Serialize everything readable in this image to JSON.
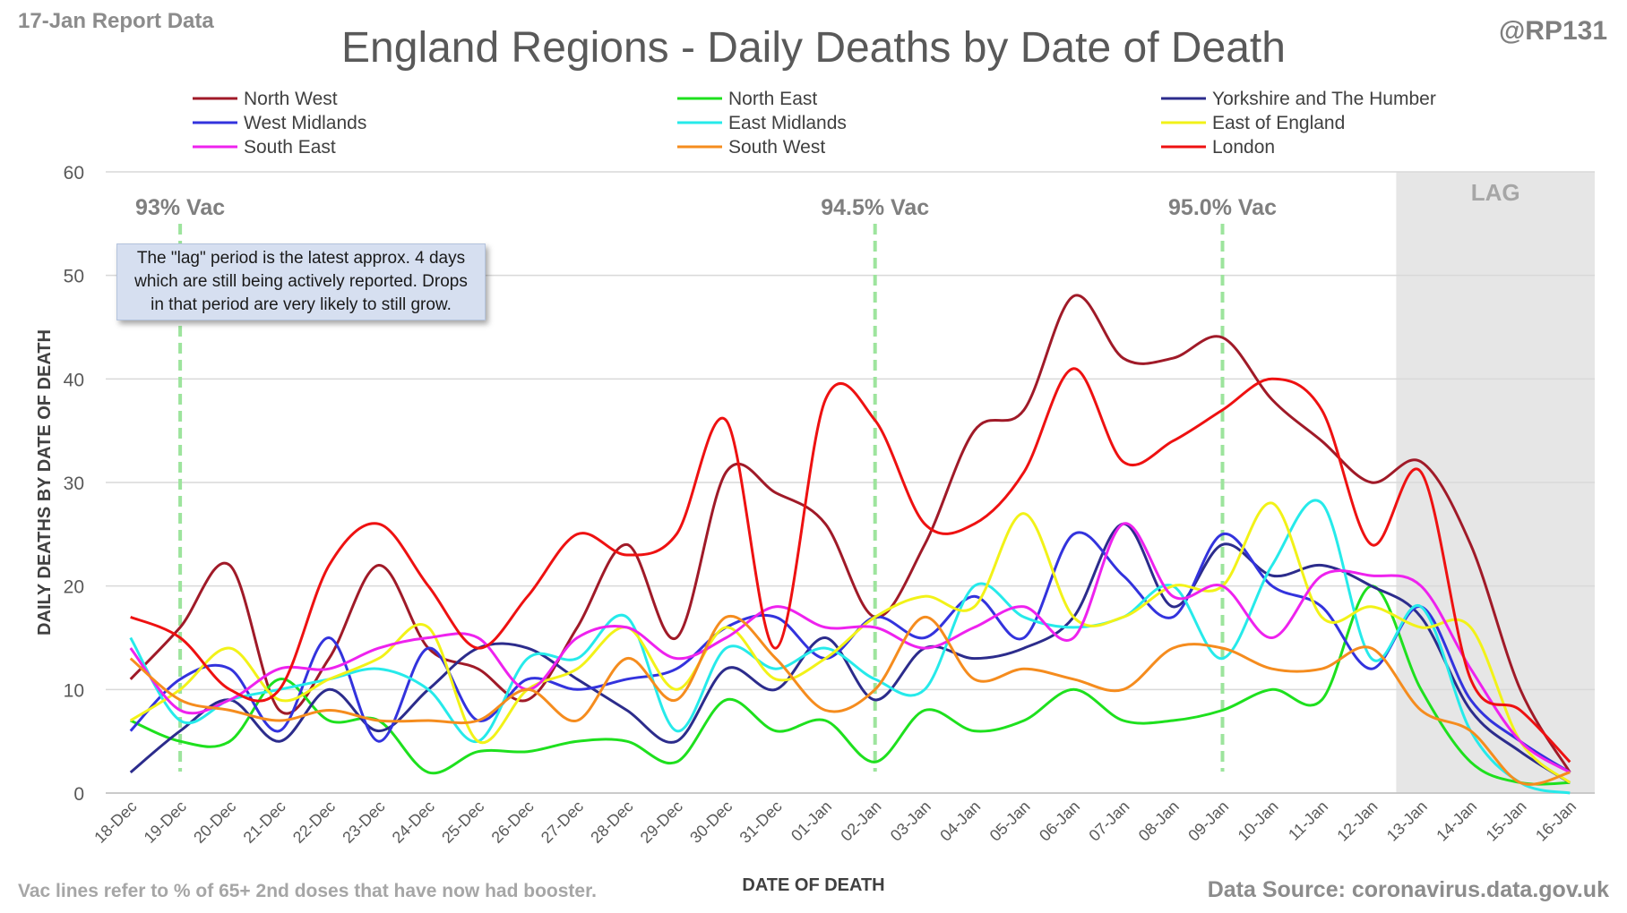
{
  "header": {
    "report_label": "17-Jan Report Data",
    "handle": "@RP131",
    "title": "England Regions - Daily Deaths by Date of Death"
  },
  "footer": {
    "note": "Vac lines refer to % of 65+ 2nd doses that have now had booster.",
    "source": "Data Source: coronavirus.data.gov.uk"
  },
  "callout": {
    "text": "The \"lag\" period is the latest approx. 4 days which are still being actively reported. Drops in that period are very likely to still grow."
  },
  "chart_data": {
    "type": "line",
    "title": "England Regions - Daily Deaths by Date of Death",
    "xlabel": "DATE OF DEATH",
    "ylabel": "DAILY DEATHS BY DATE OF DEATH",
    "ylim": [
      0,
      60
    ],
    "yticks": [
      0,
      10,
      20,
      30,
      40,
      50,
      60
    ],
    "grid": true,
    "smooth": true,
    "legend_position": "top",
    "categories": [
      "18-Dec",
      "19-Dec",
      "20-Dec",
      "21-Dec",
      "22-Dec",
      "23-Dec",
      "24-Dec",
      "25-Dec",
      "26-Dec",
      "27-Dec",
      "28-Dec",
      "29-Dec",
      "30-Dec",
      "31-Dec",
      "01-Jan",
      "02-Jan",
      "03-Jan",
      "04-Jan",
      "05-Jan",
      "06-Jan",
      "07-Jan",
      "08-Jan",
      "09-Jan",
      "10-Jan",
      "11-Jan",
      "12-Jan",
      "13-Jan",
      "14-Jan",
      "15-Jan",
      "16-Jan"
    ],
    "series": [
      {
        "name": "North West",
        "color": "#a01a28",
        "values": [
          11,
          16,
          22,
          8,
          13,
          22,
          14,
          12,
          9,
          16,
          24,
          15,
          31,
          29,
          26,
          17,
          24,
          35,
          37,
          48,
          42,
          42,
          44,
          38,
          34,
          30,
          32,
          24,
          10,
          2
        ]
      },
      {
        "name": "North East",
        "color": "#1ee01e",
        "values": [
          7,
          5,
          5,
          11,
          7,
          7,
          2,
          4,
          4,
          5,
          5,
          3,
          9,
          6,
          7,
          3,
          8,
          6,
          7,
          10,
          7,
          7,
          8,
          10,
          9,
          20,
          10,
          3,
          1,
          1
        ]
      },
      {
        "name": "Yorkshire and The Humber",
        "color": "#2c2c8c",
        "values": [
          2,
          6,
          9,
          5,
          10,
          6,
          10,
          14,
          14,
          11,
          8,
          5,
          12,
          10,
          15,
          9,
          14,
          13,
          14,
          17,
          26,
          18,
          24,
          21,
          22,
          20,
          17,
          8,
          4,
          1
        ]
      },
      {
        "name": "West Midlands",
        "color": "#3333dd",
        "values": [
          6,
          11,
          12,
          6,
          15,
          5,
          14,
          7,
          11,
          10,
          11,
          12,
          16,
          17,
          13,
          17,
          15,
          19,
          15,
          25,
          21,
          17,
          25,
          20,
          18,
          12,
          18,
          9,
          5,
          2
        ]
      },
      {
        "name": "East Midlands",
        "color": "#26eaea",
        "values": [
          15,
          7,
          9,
          10,
          11,
          12,
          10,
          5,
          13,
          13,
          17,
          6,
          14,
          12,
          14,
          11,
          10,
          20,
          17,
          16,
          17,
          20,
          13,
          22,
          28,
          13,
          18,
          6,
          1,
          0
        ]
      },
      {
        "name": "East of England",
        "color": "#f2f218",
        "values": [
          7,
          10,
          14,
          9,
          11,
          13,
          16,
          5,
          10,
          12,
          16,
          10,
          16,
          11,
          13,
          17,
          19,
          18,
          27,
          17,
          17,
          20,
          20,
          28,
          17,
          18,
          16,
          16,
          5,
          1
        ]
      },
      {
        "name": "South East",
        "color": "#ee22ee",
        "values": [
          14,
          8,
          9,
          12,
          12,
          14,
          15,
          15,
          10,
          15,
          16,
          13,
          15,
          18,
          16,
          16,
          14,
          16,
          18,
          15,
          26,
          19,
          20,
          15,
          21,
          21,
          20,
          12,
          5,
          2
        ]
      },
      {
        "name": "South West",
        "color": "#f58c1e",
        "values": [
          13,
          9,
          8,
          7,
          8,
          7,
          7,
          7,
          10,
          7,
          13,
          9,
          17,
          13,
          8,
          10,
          17,
          11,
          12,
          11,
          10,
          14,
          14,
          12,
          12,
          14,
          8,
          6,
          1,
          2
        ]
      },
      {
        "name": "London",
        "color": "#ee1111",
        "values": [
          17,
          15,
          10,
          10,
          22,
          26,
          20,
          14,
          19,
          25,
          23,
          25,
          36,
          14,
          38,
          36,
          26,
          26,
          31,
          41,
          32,
          34,
          37,
          40,
          37,
          24,
          31,
          11,
          8,
          3
        ]
      }
    ],
    "vac_markers": [
      {
        "label": "93% Vac",
        "category": "19-Dec"
      },
      {
        "label": "94.5% Vac",
        "category": "02-Jan"
      },
      {
        "label": "95.0% Vac",
        "category": "09-Jan"
      }
    ],
    "lag_region": {
      "label": "LAG",
      "from_category": "13-Jan"
    }
  }
}
